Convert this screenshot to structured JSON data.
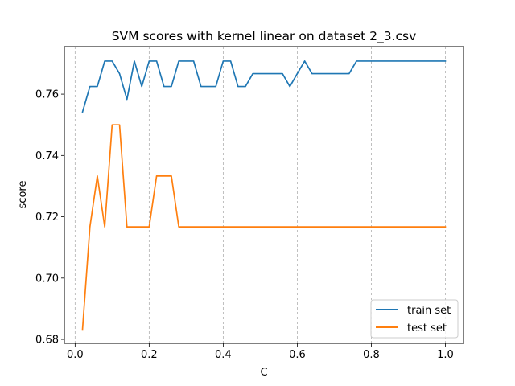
{
  "chart_data": {
    "type": "line",
    "title": "SVM scores with kernel linear on dataset 2_3.csv",
    "xlabel": "C",
    "ylabel": "score",
    "xlim": [
      -0.029,
      1.049
    ],
    "ylim": [
      0.6787,
      0.7755
    ],
    "xticks": [
      0.0,
      0.2,
      0.4,
      0.6,
      0.8,
      1.0
    ],
    "xtick_labels": [
      "0.0",
      "0.2",
      "0.4",
      "0.6",
      "0.8",
      "1.0"
    ],
    "yticks": [
      0.68,
      0.7,
      0.72,
      0.74,
      0.76
    ],
    "ytick_labels": [
      "0.68",
      "0.70",
      "0.72",
      "0.74",
      "0.76"
    ],
    "grid": "x-dashed",
    "legend_position": "lower right",
    "x": [
      0.02,
      0.04,
      0.06,
      0.08,
      0.1,
      0.12,
      0.14,
      0.16,
      0.18,
      0.2,
      0.22,
      0.24,
      0.26,
      0.28,
      0.3,
      0.32,
      0.34,
      0.36,
      0.38,
      0.4,
      0.42,
      0.44,
      0.46,
      0.48,
      0.5,
      0.52,
      0.54,
      0.56,
      0.58,
      0.6,
      0.62,
      0.64,
      0.66,
      0.68,
      0.7,
      0.72,
      0.74,
      0.76,
      0.78,
      0.8,
      0.82,
      0.84,
      0.86,
      0.88,
      0.9,
      0.92,
      0.94,
      0.96,
      0.98,
      1.0
    ],
    "series": [
      {
        "name": "train set",
        "color": "#1f77b4",
        "values": [
          0.7542,
          0.7625,
          0.7625,
          0.7708,
          0.7708,
          0.7667,
          0.7583,
          0.7708,
          0.7625,
          0.7708,
          0.7708,
          0.7625,
          0.7625,
          0.7708,
          0.7708,
          0.7708,
          0.7625,
          0.7625,
          0.7625,
          0.7708,
          0.7708,
          0.7625,
          0.7625,
          0.7667,
          0.7667,
          0.7667,
          0.7667,
          0.7667,
          0.7625,
          0.7667,
          0.7708,
          0.7667,
          0.7667,
          0.7667,
          0.7667,
          0.7667,
          0.7667,
          0.7708,
          0.7708,
          0.7708,
          0.7708,
          0.7708,
          0.7708,
          0.7708,
          0.7708,
          0.7708,
          0.7708,
          0.7708,
          0.7708,
          0.7708
        ]
      },
      {
        "name": "test set",
        "color": "#ff7f0e",
        "values": [
          0.6833,
          0.7167,
          0.7333,
          0.7167,
          0.75,
          0.75,
          0.7167,
          0.7167,
          0.7167,
          0.7167,
          0.7333,
          0.7333,
          0.7333,
          0.7167,
          0.7167,
          0.7167,
          0.7167,
          0.7167,
          0.7167,
          0.7167,
          0.7167,
          0.7167,
          0.7167,
          0.7167,
          0.7167,
          0.7167,
          0.7167,
          0.7167,
          0.7167,
          0.7167,
          0.7167,
          0.7167,
          0.7167,
          0.7167,
          0.7167,
          0.7167,
          0.7167,
          0.7167,
          0.7167,
          0.7167,
          0.7167,
          0.7167,
          0.7167,
          0.7167,
          0.7167,
          0.7167,
          0.7167,
          0.7167,
          0.7167,
          0.7167
        ]
      }
    ]
  }
}
